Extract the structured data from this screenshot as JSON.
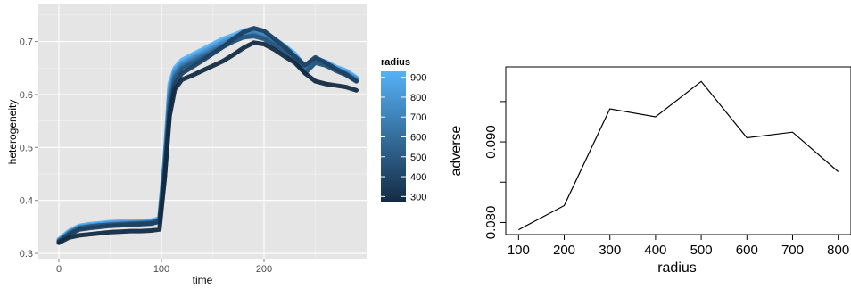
{
  "chart_data": [
    {
      "type": "line",
      "xlabel": "time",
      "ylabel": "heterogeneity",
      "xlim": [
        -20,
        300
      ],
      "ylim": [
        0.29,
        0.77
      ],
      "x_ticks": [
        "0",
        "100",
        "200"
      ],
      "y_ticks": [
        "0.3",
        "0.4",
        "0.5",
        "0.6",
        "0.7"
      ],
      "grid": true,
      "legend": {
        "title": "radius",
        "position": "right",
        "labels": [
          "900",
          "800",
          "700",
          "600",
          "500",
          "400",
          "300"
        ],
        "range": [
          300,
          900
        ],
        "color_low": "#132B43",
        "color_high": "#56B1F7"
      },
      "series": [
        {
          "radius": 300,
          "x": [
            0,
            10,
            20,
            30,
            40,
            50,
            60,
            70,
            80,
            90,
            98,
            103,
            108,
            113,
            120,
            130,
            140,
            150,
            160,
            170,
            180,
            190,
            200,
            210,
            220,
            230,
            240,
            250,
            260,
            270,
            280,
            290
          ],
          "y": [
            0.32,
            0.33,
            0.334,
            0.336,
            0.338,
            0.34,
            0.341,
            0.342,
            0.342,
            0.343,
            0.345,
            0.44,
            0.56,
            0.61,
            0.628,
            0.636,
            0.645,
            0.654,
            0.663,
            0.675,
            0.688,
            0.698,
            0.695,
            0.685,
            0.672,
            0.66,
            0.64,
            0.625,
            0.62,
            0.617,
            0.614,
            0.608
          ]
        },
        {
          "radius": 400,
          "x": [
            0,
            10,
            20,
            30,
            40,
            50,
            60,
            70,
            80,
            90,
            98,
            103,
            108,
            113,
            120,
            130,
            140,
            150,
            160,
            170,
            180,
            190,
            200,
            210,
            220,
            230,
            240,
            250,
            260,
            270,
            280,
            290
          ],
          "y": [
            0.322,
            0.335,
            0.345,
            0.348,
            0.35,
            0.352,
            0.353,
            0.354,
            0.355,
            0.356,
            0.36,
            0.44,
            0.57,
            0.62,
            0.64,
            0.652,
            0.664,
            0.677,
            0.69,
            0.705,
            0.718,
            0.725,
            0.72,
            0.705,
            0.69,
            0.672,
            0.655,
            0.67,
            0.66,
            0.648,
            0.638,
            0.625
          ]
        },
        {
          "radius": 500,
          "x": [
            0,
            10,
            20,
            30,
            40,
            50,
            60,
            70,
            80,
            90,
            98,
            103,
            108,
            113,
            120,
            130,
            140,
            150,
            160,
            170,
            180,
            190,
            200,
            210,
            220,
            230,
            240,
            250,
            260,
            270,
            280,
            290
          ],
          "y": [
            0.322,
            0.338,
            0.348,
            0.351,
            0.353,
            0.354,
            0.355,
            0.356,
            0.357,
            0.358,
            0.362,
            0.45,
            0.58,
            0.63,
            0.648,
            0.658,
            0.668,
            0.679,
            0.69,
            0.7,
            0.708,
            0.71,
            0.705,
            0.693,
            0.68,
            0.665,
            0.64,
            0.66,
            0.655,
            0.645,
            0.637,
            0.625
          ]
        },
        {
          "radius": 600,
          "x": [
            0,
            10,
            20,
            30,
            40,
            50,
            60,
            70,
            80,
            90,
            98,
            103,
            108,
            113,
            120,
            130,
            140,
            150,
            160,
            170,
            180,
            190,
            200,
            210,
            220,
            230,
            240,
            250,
            260,
            270,
            280,
            290
          ],
          "y": [
            0.323,
            0.337,
            0.347,
            0.35,
            0.352,
            0.354,
            0.355,
            0.356,
            0.357,
            0.357,
            0.361,
            0.46,
            0.59,
            0.635,
            0.652,
            0.662,
            0.672,
            0.682,
            0.692,
            0.702,
            0.708,
            0.712,
            0.706,
            0.695,
            0.682,
            0.668,
            0.642,
            0.662,
            0.656,
            0.646,
            0.638,
            0.626
          ]
        },
        {
          "radius": 700,
          "x": [
            0,
            10,
            20,
            30,
            40,
            50,
            60,
            70,
            80,
            90,
            98,
            103,
            108,
            113,
            120,
            130,
            140,
            150,
            160,
            170,
            180,
            190,
            200,
            210,
            220,
            230,
            240,
            250,
            260,
            270,
            280,
            290
          ],
          "y": [
            0.324,
            0.338,
            0.348,
            0.351,
            0.353,
            0.355,
            0.356,
            0.357,
            0.357,
            0.358,
            0.362,
            0.465,
            0.6,
            0.64,
            0.656,
            0.666,
            0.676,
            0.686,
            0.696,
            0.705,
            0.712,
            0.716,
            0.71,
            0.698,
            0.685,
            0.67,
            0.645,
            0.664,
            0.658,
            0.648,
            0.64,
            0.628
          ]
        },
        {
          "radius": 800,
          "x": [
            0,
            10,
            20,
            30,
            40,
            50,
            60,
            70,
            80,
            90,
            98,
            103,
            108,
            113,
            120,
            130,
            140,
            150,
            160,
            170,
            180,
            190,
            200,
            210,
            220,
            230,
            240,
            250,
            260,
            270,
            280,
            290
          ],
          "y": [
            0.325,
            0.34,
            0.35,
            0.353,
            0.355,
            0.357,
            0.358,
            0.358,
            0.359,
            0.36,
            0.364,
            0.47,
            0.61,
            0.645,
            0.66,
            0.67,
            0.68,
            0.69,
            0.7,
            0.708,
            0.715,
            0.72,
            0.713,
            0.7,
            0.687,
            0.673,
            0.648,
            0.666,
            0.66,
            0.65,
            0.642,
            0.63
          ]
        },
        {
          "radius": 900,
          "x": [
            0,
            10,
            20,
            30,
            40,
            50,
            60,
            70,
            80,
            90,
            98,
            103,
            108,
            113,
            120,
            130,
            140,
            150,
            160,
            170,
            180,
            190,
            200,
            210,
            220,
            230,
            240,
            250,
            260,
            270,
            280,
            290
          ],
          "y": [
            0.326,
            0.342,
            0.352,
            0.355,
            0.357,
            0.359,
            0.36,
            0.36,
            0.361,
            0.362,
            0.366,
            0.475,
            0.62,
            0.65,
            0.665,
            0.675,
            0.685,
            0.695,
            0.705,
            0.712,
            0.72,
            0.725,
            0.718,
            0.705,
            0.692,
            0.677,
            0.652,
            0.668,
            0.662,
            0.652,
            0.645,
            0.632
          ]
        }
      ]
    },
    {
      "type": "line",
      "xlabel": "radius",
      "ylabel": "adverse",
      "xlim": [
        72,
        828
      ],
      "ylim": [
        0.0785,
        0.0993
      ],
      "x_ticks": [
        "100",
        "200",
        "300",
        "400",
        "500",
        "600",
        "700",
        "800"
      ],
      "y_ticks": [
        "0.080",
        "0.090"
      ],
      "x": [
        100,
        200,
        300,
        400,
        500,
        600,
        700,
        800
      ],
      "y": [
        0.0791,
        0.0821,
        0.0941,
        0.0931,
        0.0975,
        0.0905,
        0.0912,
        0.0863
      ]
    }
  ]
}
